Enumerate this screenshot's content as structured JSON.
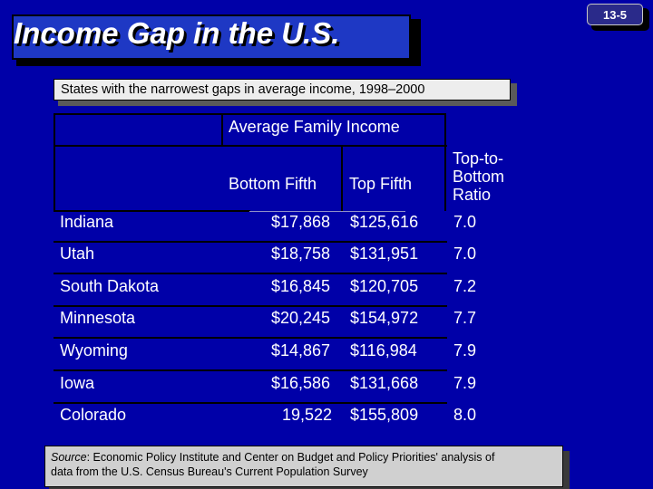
{
  "slide": {
    "title": "Income Gap in the U.S.",
    "number": "13-5",
    "subtitle": "States with the narrowest gaps in average income, 1998–2000"
  },
  "table": {
    "group_header": "Average Family Income",
    "col_headers": [
      "Bottom Fifth",
      "Top Fifth"
    ],
    "ratio_header_lines": [
      "Top-to-",
      "Bottom",
      "Ratio"
    ],
    "rows": [
      {
        "state": "Indiana",
        "bottom": "$17,868",
        "top": "$125,616",
        "ratio": "7.0"
      },
      {
        "state": "Utah",
        "bottom": "$18,758",
        "top": "$131,951",
        "ratio": "7.0"
      },
      {
        "state": "South Dakota",
        "bottom": "$16,845",
        "top": "$120,705",
        "ratio": "7.2"
      },
      {
        "state": "Minnesota",
        "bottom": "$20,245",
        "top": "$154,972",
        "ratio": "7.7"
      },
      {
        "state": "Wyoming",
        "bottom": "$14,867",
        "top": "$116,984",
        "ratio": "7.9"
      },
      {
        "state": "Iowa",
        "bottom": "$16,586",
        "top": "$131,668",
        "ratio": "7.9"
      },
      {
        "state": "Colorado",
        "bottom": "19,522",
        "top": "$155,809",
        "ratio": "8.0"
      }
    ]
  },
  "source": {
    "label": "Source",
    "text": ": Economic Policy Institute and Center on Budget and Policy Priorities' analysis of",
    "text2": "data from the U.S. Census Bureau's Current Population Survey"
  },
  "colors": {
    "background": "#0000A8",
    "title_box": "#1E38C4",
    "text": "#FFFFFF"
  }
}
